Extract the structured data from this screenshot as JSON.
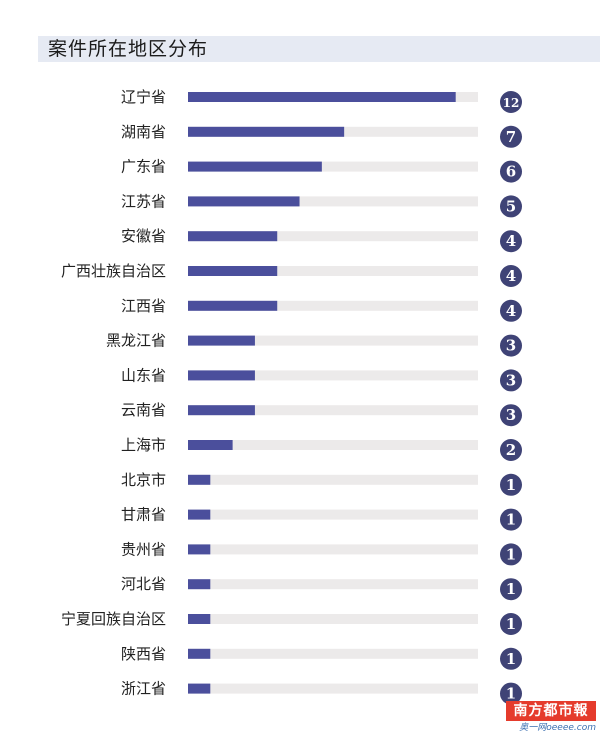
{
  "chart_data": {
    "type": "bar",
    "orientation": "horizontal",
    "title": "案件所在地区分布",
    "categories": [
      "辽宁省",
      "湖南省",
      "广东省",
      "江苏省",
      "安徽省",
      "广西壮族自治区",
      "江西省",
      "黑龙江省",
      "山东省",
      "云南省",
      "上海市",
      "北京市",
      "甘肃省",
      "贵州省",
      "河北省",
      "宁夏回族自治区",
      "陕西省",
      "浙江省"
    ],
    "values": [
      12,
      7,
      6,
      5,
      4,
      4,
      4,
      3,
      3,
      3,
      2,
      1,
      1,
      1,
      1,
      1,
      1,
      1
    ],
    "xlim": [
      0,
      13
    ],
    "grid": false,
    "legend": "none"
  },
  "colors": {
    "bar": "#4b4f9c",
    "track": "#eceaea",
    "badge": "#3f4376",
    "title_band": "#e6eaf3",
    "watermark": "#e53b2c"
  },
  "watermark": {
    "line1": "南方都市報",
    "line2": "奥一网oeeee.com"
  }
}
